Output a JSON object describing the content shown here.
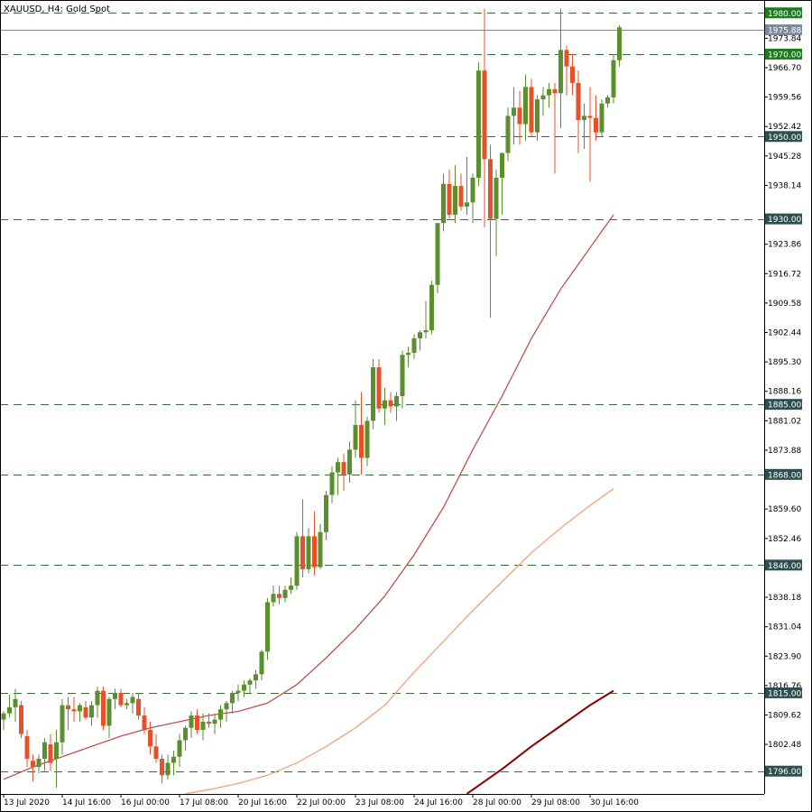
{
  "chart_data": {
    "type": "candlestick",
    "title": "XAUUSD, H4:  Gold Spot",
    "colors": {
      "bull": "#5a8f2c",
      "bear": "#e8502a",
      "hline": "#3a6b3a",
      "label_green": "#1e7a1e",
      "label_dark": "#2f4f4f",
      "label_gray": "#7a8a9a",
      "ma_fast": "#c0504d",
      "ma_mid": "#f4a27a",
      "ma_slow": "#8b0000"
    },
    "x_labels": [
      {
        "i": 0,
        "text": "13 Jul 2020"
      },
      {
        "i": 10,
        "text": "14 Jul 16:00"
      },
      {
        "i": 20,
        "text": "16 Jul 00:00"
      },
      {
        "i": 30,
        "text": "17 Jul 08:00"
      },
      {
        "i": 40,
        "text": "20 Jul 16:00"
      },
      {
        "i": 50,
        "text": "22 Jul 00:00"
      },
      {
        "i": 60,
        "text": "23 Jul 08:00"
      },
      {
        "i": 70,
        "text": "24 Jul 16:00"
      },
      {
        "i": 80,
        "text": "28 Jul 00:00"
      },
      {
        "i": 90,
        "text": "29 Jul 08:00"
      },
      {
        "i": 100,
        "text": "30 Jul 16:00"
      }
    ],
    "y_ticks": [
      "1973.84",
      "1966.70",
      "1959.56",
      "1952.42",
      "1945.28",
      "1938.14",
      "1923.86",
      "1916.72",
      "1909.58",
      "1902.44",
      "1895.30",
      "1888.16",
      "1881.02",
      "1873.88",
      "1859.60",
      "1852.46",
      "1838.18",
      "1831.04",
      "1823.90",
      "1816.76",
      "1809.62",
      "1802.48"
    ],
    "ylim": [
      1790.46,
      1983.12
    ],
    "price_levels": [
      {
        "value": 1980.0,
        "label": "1980.00",
        "style": "green"
      },
      {
        "value": 1975.88,
        "label": "1975.88",
        "style": "gray"
      },
      {
        "value": 1970.0,
        "label": "1970.00",
        "style": "green"
      },
      {
        "value": 1950.0,
        "label": "1950.00",
        "style": "dark"
      },
      {
        "value": 1930.0,
        "label": "1930.00",
        "style": "dark"
      },
      {
        "value": 1885.0,
        "label": "1885.00",
        "style": "dark"
      },
      {
        "value": 1868.0,
        "label": "1868.00",
        "style": "dark"
      },
      {
        "value": 1846.0,
        "label": "1846.00",
        "style": "dark"
      },
      {
        "value": 1815.0,
        "label": "1815.00",
        "style": "dark"
      },
      {
        "value": 1796.0,
        "label": "1796.00",
        "style": "dark"
      }
    ],
    "candles": [
      [
        1808.5,
        1810.5,
        1806.0,
        1810.0
      ],
      [
        1810.0,
        1814.5,
        1809.0,
        1811.5
      ],
      [
        1811.5,
        1816.0,
        1808.0,
        1813.5
      ],
      [
        1812.0,
        1813.0,
        1804.0,
        1805.0
      ],
      [
        1804.5,
        1806.0,
        1797.0,
        1799.0
      ],
      [
        1798.5,
        1800.0,
        1793.5,
        1797.0
      ],
      [
        1797.0,
        1800.0,
        1795.5,
        1799.0
      ],
      [
        1799.0,
        1804.0,
        1796.0,
        1803.0
      ],
      [
        1802.5,
        1805.0,
        1796.0,
        1798.0
      ],
      [
        1799.0,
        1806.0,
        1792.0,
        1803.0
      ],
      [
        1803.0,
        1813.5,
        1800.0,
        1812.0
      ],
      [
        1812.0,
        1814.0,
        1806.0,
        1811.0
      ],
      [
        1811.0,
        1814.0,
        1808.0,
        1810.5
      ],
      [
        1810.5,
        1812.5,
        1808.0,
        1812.0
      ],
      [
        1811.5,
        1813.0,
        1808.5,
        1809.0
      ],
      [
        1809.0,
        1813.0,
        1807.0,
        1812.0
      ],
      [
        1812.0,
        1816.5,
        1809.0,
        1815.5
      ],
      [
        1815.5,
        1816.5,
        1806.0,
        1807.0
      ],
      [
        1807.0,
        1814.0,
        1804.0,
        1813.5
      ],
      [
        1813.5,
        1816.0,
        1811.0,
        1815.0
      ],
      [
        1815.0,
        1816.0,
        1811.5,
        1812.0
      ],
      [
        1812.0,
        1813.5,
        1811.0,
        1812.5
      ],
      [
        1812.5,
        1815.0,
        1810.0,
        1814.0
      ],
      [
        1813.5,
        1815.0,
        1808.5,
        1809.5
      ],
      [
        1809.5,
        1811.5,
        1805.0,
        1806.0
      ],
      [
        1806.0,
        1808.0,
        1800.0,
        1802.0
      ],
      [
        1802.0,
        1805.0,
        1798.0,
        1799.0
      ],
      [
        1799.0,
        1800.0,
        1793.0,
        1795.0
      ],
      [
        1795.0,
        1800.0,
        1794.0,
        1798.0
      ],
      [
        1798.0,
        1801.0,
        1795.0,
        1799.5
      ],
      [
        1799.5,
        1805.0,
        1797.0,
        1803.5
      ],
      [
        1803.5,
        1807.0,
        1801.0,
        1806.5
      ],
      [
        1806.5,
        1810.5,
        1804.0,
        1809.5
      ],
      [
        1809.5,
        1811.0,
        1805.0,
        1806.0
      ],
      [
        1806.0,
        1810.0,
        1803.5,
        1808.0
      ],
      [
        1808.0,
        1810.0,
        1806.5,
        1807.5
      ],
      [
        1807.5,
        1810.0,
        1805.0,
        1808.5
      ],
      [
        1808.5,
        1812.0,
        1806.5,
        1811.0
      ],
      [
        1811.0,
        1813.0,
        1808.0,
        1812.5
      ],
      [
        1812.5,
        1815.5,
        1810.0,
        1815.0
      ],
      [
        1815.0,
        1817.0,
        1813.0,
        1815.5
      ],
      [
        1815.5,
        1818.0,
        1814.0,
        1817.0
      ],
      [
        1817.0,
        1818.5,
        1815.0,
        1818.0
      ],
      [
        1818.0,
        1820.5,
        1816.0,
        1819.5
      ],
      [
        1819.5,
        1825.5,
        1818.0,
        1825.0
      ],
      [
        1825.0,
        1838.0,
        1823.0,
        1837.0
      ],
      [
        1837.0,
        1841.0,
        1836.0,
        1839.0
      ],
      [
        1839.0,
        1841.0,
        1836.5,
        1838.0
      ],
      [
        1838.0,
        1841.0,
        1837.0,
        1840.0
      ],
      [
        1840.0,
        1843.0,
        1839.0,
        1841.0
      ],
      [
        1841.0,
        1854.0,
        1840.0,
        1853.0
      ],
      [
        1853.0,
        1862.0,
        1843.0,
        1845.0
      ],
      [
        1845.0,
        1855.0,
        1844.0,
        1853.0
      ],
      [
        1853.0,
        1859.0,
        1843.5,
        1845.5
      ],
      [
        1845.5,
        1856.0,
        1845.0,
        1854.0
      ],
      [
        1854.0,
        1864.0,
        1852.0,
        1863.0
      ],
      [
        1863.0,
        1870.0,
        1861.0,
        1868.5
      ],
      [
        1868.5,
        1872.0,
        1863.0,
        1871.0
      ],
      [
        1871.0,
        1873.0,
        1864.0,
        1868.0
      ],
      [
        1868.0,
        1876.0,
        1866.0,
        1874.0
      ],
      [
        1874.0,
        1886.0,
        1872.0,
        1880.0
      ],
      [
        1880.0,
        1888.0,
        1868.0,
        1872.0
      ],
      [
        1872.0,
        1882.0,
        1870.0,
        1881.0
      ],
      [
        1881.0,
        1896.0,
        1879.0,
        1894.0
      ],
      [
        1894.0,
        1896.0,
        1883.0,
        1884.0
      ],
      [
        1884.0,
        1889.0,
        1880.0,
        1886.0
      ],
      [
        1886.0,
        1888.0,
        1883.0,
        1884.5
      ],
      [
        1884.5,
        1888.0,
        1881.0,
        1887.0
      ],
      [
        1887.0,
        1898.0,
        1884.0,
        1897.0
      ],
      [
        1897.0,
        1899.0,
        1894.0,
        1897.5
      ],
      [
        1897.5,
        1902.0,
        1896.0,
        1901.0
      ],
      [
        1901.0,
        1903.0,
        1898.0,
        1902.5
      ],
      [
        1902.5,
        1910.0,
        1901.0,
        1903.0
      ],
      [
        1903.0,
        1915.0,
        1902.0,
        1914.0
      ],
      [
        1914.0,
        1928.0,
        1912.0,
        1929.0
      ],
      [
        1929.0,
        1941.0,
        1927.0,
        1938.5
      ],
      [
        1938.5,
        1942.0,
        1930.0,
        1931.0
      ],
      [
        1931.0,
        1943.0,
        1929.0,
        1938.0
      ],
      [
        1938.0,
        1941.0,
        1932.0,
        1933.0
      ],
      [
        1933.0,
        1945.0,
        1931.0,
        1934.0
      ],
      [
        1934.0,
        1941.0,
        1929.0,
        1940.0
      ],
      [
        1940.0,
        1968.0,
        1938.0,
        1966.0
      ],
      [
        1966.0,
        1981.0,
        1928.0,
        1944.5
      ],
      [
        1944.5,
        1948.0,
        1906.0,
        1930.0
      ],
      [
        1930.0,
        1942.0,
        1921.0,
        1940.0
      ],
      [
        1940.0,
        1946.0,
        1931.0,
        1946.0
      ],
      [
        1946.0,
        1957.0,
        1944.0,
        1955.0
      ],
      [
        1955.0,
        1962.0,
        1948.0,
        1957.0
      ],
      [
        1957.0,
        1961.0,
        1948.0,
        1953.0
      ],
      [
        1953.0,
        1965.0,
        1949.0,
        1962.0
      ],
      [
        1962.0,
        1964.0,
        1950.0,
        1951.0
      ],
      [
        1951.0,
        1960.0,
        1949.0,
        1959.0
      ],
      [
        1959.0,
        1962.0,
        1955.0,
        1960.0
      ],
      [
        1960.0,
        1963.0,
        1957.0,
        1961.5
      ],
      [
        1961.5,
        1963.0,
        1941.0,
        1960.5
      ],
      [
        1960.5,
        1981.0,
        1952.0,
        1971.0
      ],
      [
        1971.0,
        1972.0,
        1960.0,
        1967.0
      ],
      [
        1967.0,
        1970.0,
        1960.0,
        1963.0
      ],
      [
        1963.0,
        1966.0,
        1946.0,
        1954.0
      ],
      [
        1954.0,
        1958.0,
        1947.0,
        1955.0
      ],
      [
        1955.0,
        1962.0,
        1939.0,
        1954.5
      ],
      [
        1954.5,
        1960.0,
        1949.0,
        1951.0
      ],
      [
        1951.0,
        1959.0,
        1950.0,
        1958.0
      ],
      [
        1958.0,
        1960.0,
        1957.0,
        1959.5
      ],
      [
        1959.5,
        1970.0,
        1958.0,
        1968.5
      ],
      [
        1968.5,
        1977.0,
        1967.0,
        1976.5
      ]
    ],
    "ma_fast": [
      {
        "i": 0,
        "v": 1794
      },
      {
        "i": 5,
        "v": 1797
      },
      {
        "i": 10,
        "v": 1799.5
      },
      {
        "i": 15,
        "v": 1802
      },
      {
        "i": 20,
        "v": 1804.5
      },
      {
        "i": 25,
        "v": 1806.5
      },
      {
        "i": 30,
        "v": 1808
      },
      {
        "i": 35,
        "v": 1809.5
      },
      {
        "i": 40,
        "v": 1810.5
      },
      {
        "i": 45,
        "v": 1812.5
      },
      {
        "i": 50,
        "v": 1817
      },
      {
        "i": 55,
        "v": 1823.5
      },
      {
        "i": 60,
        "v": 1830.5
      },
      {
        "i": 65,
        "v": 1838.5
      },
      {
        "i": 70,
        "v": 1848.5
      },
      {
        "i": 75,
        "v": 1860
      },
      {
        "i": 80,
        "v": 1874
      },
      {
        "i": 85,
        "v": 1887
      },
      {
        "i": 90,
        "v": 1901
      },
      {
        "i": 95,
        "v": 1913
      },
      {
        "i": 100,
        "v": 1923
      },
      {
        "i": 104,
        "v": 1931
      }
    ],
    "ma_mid": [
      {
        "i": 31,
        "v": 1790.5
      },
      {
        "i": 35,
        "v": 1791.5
      },
      {
        "i": 40,
        "v": 1793
      },
      {
        "i": 45,
        "v": 1795
      },
      {
        "i": 50,
        "v": 1798
      },
      {
        "i": 55,
        "v": 1802
      },
      {
        "i": 60,
        "v": 1806.5
      },
      {
        "i": 65,
        "v": 1812
      },
      {
        "i": 70,
        "v": 1820
      },
      {
        "i": 75,
        "v": 1827.5
      },
      {
        "i": 80,
        "v": 1835
      },
      {
        "i": 85,
        "v": 1842
      },
      {
        "i": 90,
        "v": 1849
      },
      {
        "i": 95,
        "v": 1855
      },
      {
        "i": 100,
        "v": 1860.5
      },
      {
        "i": 104,
        "v": 1864.5
      }
    ],
    "ma_slow": [
      {
        "i": 79,
        "v": 1790.5
      },
      {
        "i": 85,
        "v": 1796.5
      },
      {
        "i": 90,
        "v": 1802
      },
      {
        "i": 95,
        "v": 1807
      },
      {
        "i": 100,
        "v": 1812
      },
      {
        "i": 104,
        "v": 1815.5
      }
    ]
  }
}
